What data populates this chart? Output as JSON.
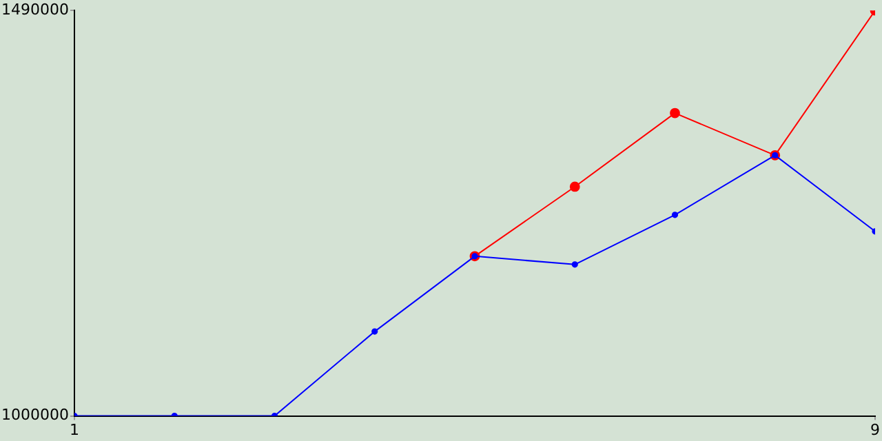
{
  "chart_data": {
    "type": "line",
    "x": [
      1,
      2,
      3,
      4,
      5,
      6,
      7,
      8,
      9
    ],
    "series": [
      {
        "color": "#0000ff",
        "values": [
          1000000,
          1000000,
          1000000,
          1102000,
          1193000,
          1183000,
          1243000,
          1315000,
          1223000
        ]
      },
      {
        "color": "#ff0000",
        "values": [
          null,
          null,
          null,
          null,
          1193000,
          1277000,
          1366000,
          1315000,
          1490000
        ]
      }
    ],
    "xlim": [
      1,
      9
    ],
    "xticks": [
      1,
      9
    ],
    "ylim": [
      1000000,
      1490000
    ],
    "yticks": [
      1000000,
      1490000
    ],
    "grid": false,
    "legend": false,
    "marker": "circle"
  }
}
